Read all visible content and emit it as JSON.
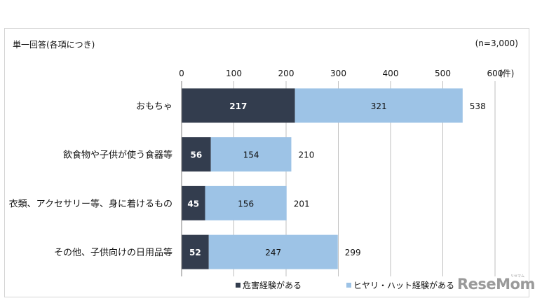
{
  "header": {
    "note": "単一回答(各項につき)",
    "sample": "(n=3,000)"
  },
  "chart_data": {
    "type": "bar",
    "orientation": "horizontal",
    "stacked": true,
    "title": "",
    "xlabel": "",
    "ylabel": "",
    "unit": "(件)",
    "xlim": [
      0,
      600
    ],
    "xticks": [
      0,
      100,
      200,
      300,
      400,
      500,
      600
    ],
    "grid": true,
    "legend_position": "bottom",
    "categories": [
      "おもちゃ",
      "飲食物や子供が使う食器等",
      "衣類、アクセサリー等、身に着けるもの",
      "その他、子供向けの日用品等"
    ],
    "series": [
      {
        "name": "危害経験がある",
        "color": "#333d4e",
        "label_color": "#ffffff",
        "values": [
          217,
          56,
          45,
          52
        ]
      },
      {
        "name": "ヒヤリ・ハット経験がある",
        "color": "#9dc3e6",
        "label_color": "#111111",
        "values": [
          321,
          154,
          156,
          247
        ]
      }
    ],
    "totals": [
      538,
      210,
      201,
      299
    ]
  },
  "branding": {
    "logo": "ReseMom",
    "logo_sub": "リセマム"
  }
}
